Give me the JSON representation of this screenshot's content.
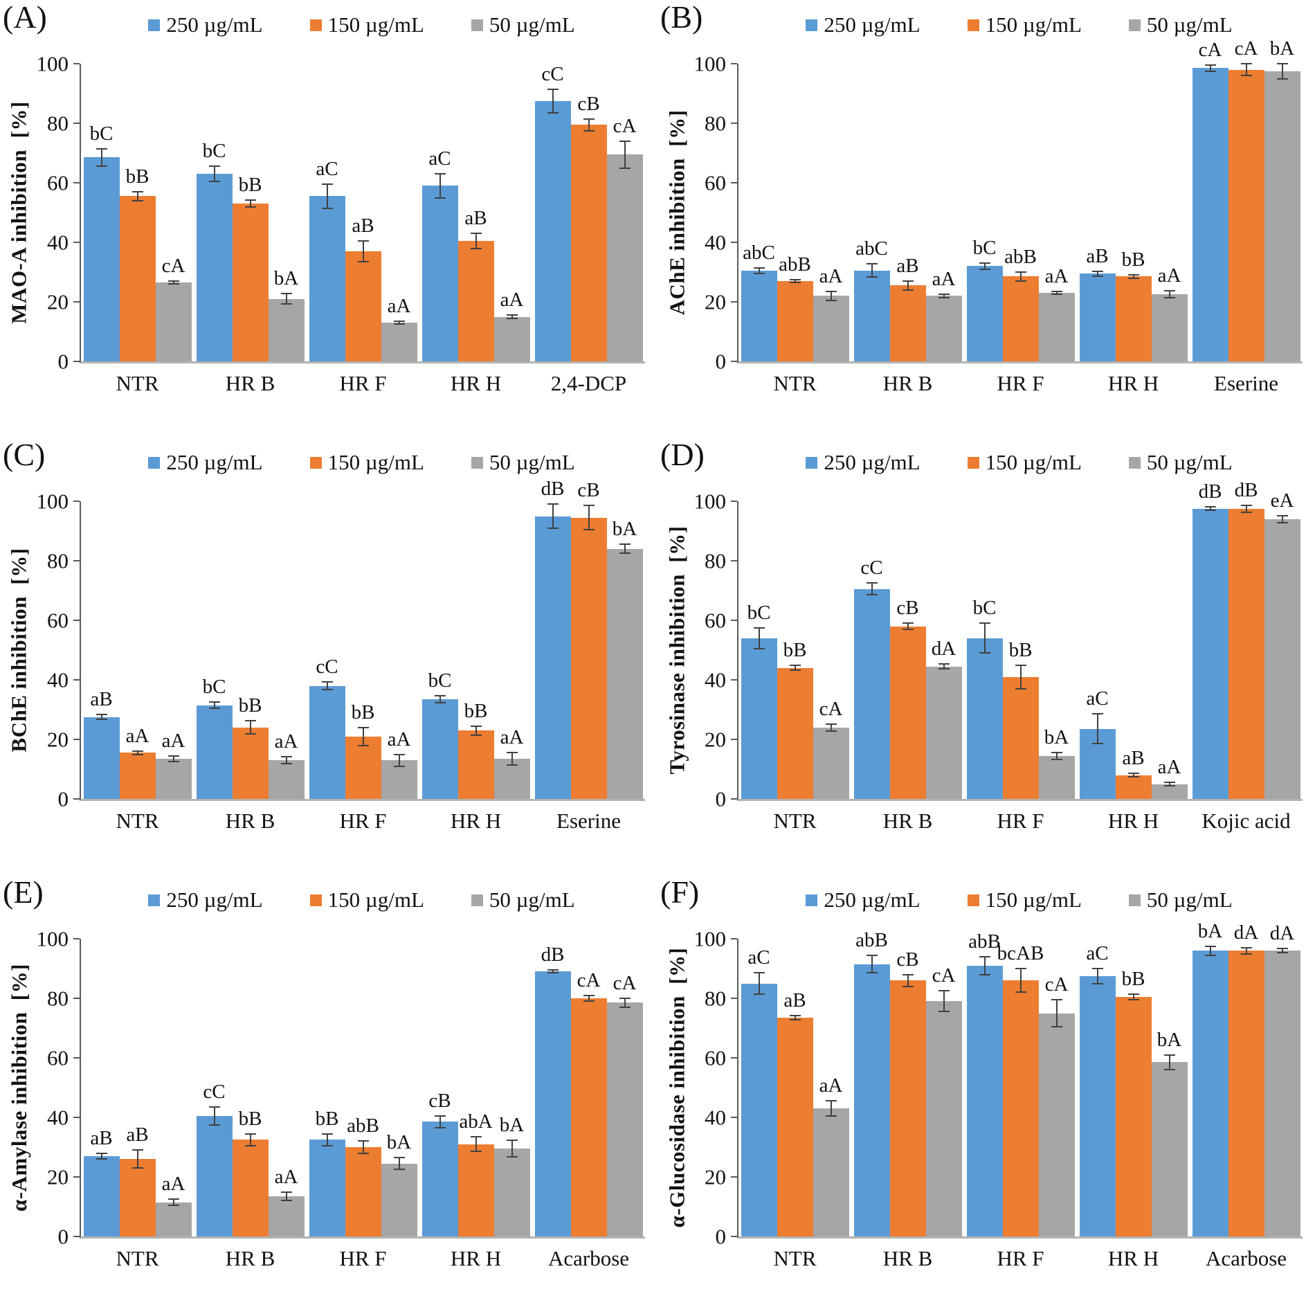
{
  "figure": {
    "legend": {
      "items": [
        {
          "label": "250 µg/mL",
          "color": "#5B9BD5"
        },
        {
          "label": "150 µg/mL",
          "color": "#ED7D31"
        },
        {
          "label": "50 µg/mL",
          "color": "#A6A6A6"
        }
      ]
    }
  },
  "chart_data": [
    {
      "panel_label": "(A)",
      "type": "bar",
      "ylabel": "MAO-A inhibition  [%]",
      "ylim": [
        0,
        100
      ],
      "yticks": [
        0,
        20,
        40,
        60,
        80,
        100
      ],
      "grid": false,
      "legend_position": "top",
      "categories": [
        "NTR",
        "HR B",
        "HR F",
        "HR H",
        "2,4-DCP"
      ],
      "series": [
        {
          "name": "250 µg/mL",
          "color": "#5B9BD5",
          "values": [
            68.5,
            63,
            55.5,
            59,
            87.5
          ],
          "errors": [
            3,
            2.5,
            4,
            4,
            4
          ],
          "sig_labels": [
            "bC",
            "bC",
            "aC",
            "aC",
            "cC"
          ]
        },
        {
          "name": "150 µg/mL",
          "color": "#ED7D31",
          "values": [
            55.5,
            53,
            37,
            40.5,
            79.5
          ],
          "errors": [
            1.5,
            1.2,
            3.5,
            2.5,
            2
          ],
          "sig_labels": [
            "bB",
            "bB",
            "aB",
            "aB",
            "cB"
          ]
        },
        {
          "name": "50 µg/mL",
          "color": "#A6A6A6",
          "values": [
            26.5,
            21,
            13,
            15,
            69.5
          ],
          "errors": [
            0.5,
            1.8,
            0.4,
            0.5,
            4.5
          ],
          "sig_labels": [
            "cA",
            "bA",
            "aA",
            "aA",
            "cA"
          ]
        }
      ]
    },
    {
      "panel_label": "(B)",
      "type": "bar",
      "ylabel": "AChE inhibition  [%]",
      "ylim": [
        0,
        100
      ],
      "yticks": [
        0,
        20,
        40,
        60,
        80,
        100
      ],
      "grid": false,
      "legend_position": "top",
      "categories": [
        "NTR",
        "HR B",
        "HR F",
        "HR H",
        "Eserine"
      ],
      "series": [
        {
          "name": "250 µg/mL",
          "color": "#5B9BD5",
          "values": [
            30.5,
            30.5,
            32,
            29.5,
            98.5
          ],
          "errors": [
            1,
            2.2,
            1,
            0.8,
            1
          ],
          "sig_labels": [
            "abC",
            "abC",
            "bC",
            "aB",
            "cA"
          ]
        },
        {
          "name": "150 µg/mL",
          "color": "#ED7D31",
          "values": [
            27,
            25.5,
            28.5,
            28.5,
            98
          ],
          "errors": [
            0.5,
            1.5,
            1.5,
            0.5,
            2
          ],
          "sig_labels": [
            "abB",
            "aB",
            "abB",
            "bB",
            "cA"
          ]
        },
        {
          "name": "50 µg/mL",
          "color": "#A6A6A6",
          "values": [
            22,
            22,
            23,
            22.5,
            97.5
          ],
          "errors": [
            1.5,
            0.6,
            0.5,
            1.2,
            2.5
          ],
          "sig_labels": [
            "aA",
            "aA",
            "aA",
            "aA",
            "bA"
          ]
        }
      ]
    },
    {
      "panel_label": "(C)",
      "type": "bar",
      "ylabel": "BChE inhibition  [%]",
      "ylim": [
        0,
        100
      ],
      "yticks": [
        0,
        20,
        40,
        60,
        80,
        100
      ],
      "grid": false,
      "legend_position": "top",
      "categories": [
        "NTR",
        "HR B",
        "HR F",
        "HR H",
        "Eserine"
      ],
      "series": [
        {
          "name": "250 µg/mL",
          "color": "#5B9BD5",
          "values": [
            27.5,
            31.5,
            38,
            33.5,
            95
          ],
          "errors": [
            0.8,
            1,
            1.2,
            1.2,
            4
          ],
          "sig_labels": [
            "aB",
            "bC",
            "cC",
            "bC",
            "dB"
          ]
        },
        {
          "name": "150 µg/mL",
          "color": "#ED7D31",
          "values": [
            15.5,
            24,
            21,
            23,
            94.5
          ],
          "errors": [
            0.6,
            2.2,
            3,
            1.5,
            4
          ],
          "sig_labels": [
            "aA",
            "bB",
            "bB",
            "bB",
            "cB"
          ]
        },
        {
          "name": "50 µg/mL",
          "color": "#A6A6A6",
          "values": [
            13.5,
            13,
            13,
            13.5,
            84
          ],
          "errors": [
            1,
            1.2,
            2,
            2,
            1.5
          ],
          "sig_labels": [
            "aA",
            "aA",
            "aA",
            "aA",
            "bA"
          ]
        }
      ]
    },
    {
      "panel_label": "(D)",
      "type": "bar",
      "ylabel": "Tyrosinase inhibition  [%]",
      "ylim": [
        0,
        100
      ],
      "yticks": [
        0,
        20,
        40,
        60,
        80,
        100
      ],
      "grid": false,
      "legend_position": "top",
      "categories": [
        "NTR",
        "HR B",
        "HR F",
        "HR H",
        "Kojic acid"
      ],
      "series": [
        {
          "name": "250 µg/mL",
          "color": "#5B9BD5",
          "values": [
            54,
            70.5,
            54,
            23.5,
            97.5
          ],
          "errors": [
            3.5,
            2,
            5,
            5,
            0.6
          ],
          "sig_labels": [
            "bC",
            "cC",
            "bC",
            "aC",
            "dB"
          ]
        },
        {
          "name": "150 µg/mL",
          "color": "#ED7D31",
          "values": [
            44,
            58,
            41,
            8,
            97.5
          ],
          "errors": [
            0.8,
            1,
            4,
            0.5,
            1.2
          ],
          "sig_labels": [
            "bB",
            "cB",
            "bB",
            "aB",
            "dB"
          ]
        },
        {
          "name": "50 µg/mL",
          "color": "#A6A6A6",
          "values": [
            24,
            44.5,
            14.5,
            5,
            94
          ],
          "errors": [
            1.2,
            0.8,
            1.2,
            0.5,
            1.2
          ],
          "sig_labels": [
            "cA",
            "dA",
            "bA",
            "aA",
            "eA"
          ]
        }
      ]
    },
    {
      "panel_label": "(E)",
      "type": "bar",
      "ylabel": "α-Amylase inhibition  [%]",
      "ylim": [
        0,
        100
      ],
      "yticks": [
        0,
        20,
        40,
        60,
        80,
        100
      ],
      "grid": false,
      "legend_position": "top",
      "categories": [
        "NTR",
        "HR B",
        "HR F",
        "HR H",
        "Acarbose"
      ],
      "series": [
        {
          "name": "250 µg/mL",
          "color": "#5B9BD5",
          "values": [
            27,
            40.5,
            32.5,
            38.5,
            89
          ],
          "errors": [
            1,
            3,
            2,
            2,
            0.5
          ],
          "sig_labels": [
            "aB",
            "cC",
            "bB",
            "cB",
            "dB"
          ]
        },
        {
          "name": "150 µg/mL",
          "color": "#ED7D31",
          "values": [
            26,
            32.5,
            30,
            31,
            80
          ],
          "errors": [
            3,
            2,
            2,
            2.5,
            1
          ],
          "sig_labels": [
            "aB",
            "bB",
            "abB",
            "abA",
            "cA"
          ]
        },
        {
          "name": "50 µg/mL",
          "color": "#A6A6A6",
          "values": [
            11.5,
            13.5,
            24.5,
            29.5,
            78.5
          ],
          "errors": [
            1,
            1.5,
            2,
            2.8,
            1.5
          ],
          "sig_labels": [
            "aA",
            "aA",
            "bA",
            "bA",
            "cA"
          ]
        }
      ]
    },
    {
      "panel_label": "(F)",
      "type": "bar",
      "ylabel": "α-Glucosidase inhibition  [%]",
      "ylim": [
        0,
        100
      ],
      "yticks": [
        0,
        20,
        40,
        60,
        80,
        100
      ],
      "grid": false,
      "legend_position": "top",
      "categories": [
        "NTR",
        "HR B",
        "HR F",
        "HR H",
        "Acarbose"
      ],
      "series": [
        {
          "name": "250 µg/mL",
          "color": "#5B9BD5",
          "values": [
            85,
            91.5,
            91,
            87.5,
            96
          ],
          "errors": [
            3.5,
            3,
            3,
            2.5,
            1.5
          ],
          "sig_labels": [
            "aC",
            "abB",
            "abB",
            "aC",
            "bA"
          ]
        },
        {
          "name": "150 µg/mL",
          "color": "#ED7D31",
          "values": [
            73.5,
            86,
            86,
            80.5,
            96
          ],
          "errors": [
            0.8,
            2,
            4,
            1,
            1
          ],
          "sig_labels": [
            "aB",
            "cB",
            "bcAB",
            "bB",
            "dA"
          ]
        },
        {
          "name": "50 µg/mL",
          "color": "#A6A6A6",
          "values": [
            43,
            79,
            75,
            58.5,
            96
          ],
          "errors": [
            2.5,
            3.5,
            4.5,
            2.5,
            0.7
          ],
          "sig_labels": [
            "aA",
            "cA",
            "cA",
            "bA",
            "dA"
          ]
        }
      ]
    }
  ]
}
